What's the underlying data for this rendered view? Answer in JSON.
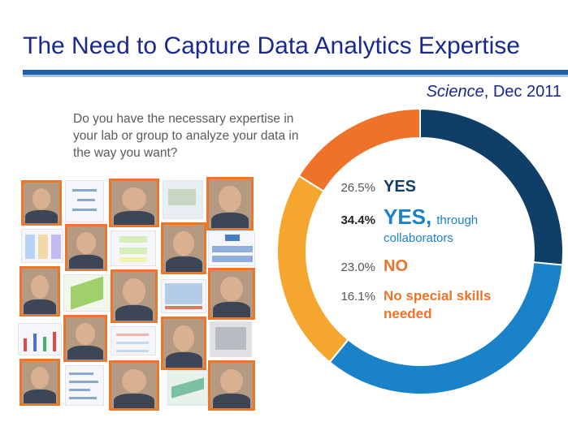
{
  "slide": {
    "title": "The Need to Capture Data Analytics Expertise",
    "source_pub": "Science",
    "source_date": ", Dec 2011",
    "question": "Do you have the necessary expertise in your lab or group to analyze your data in the way you want?"
  },
  "chart_data": {
    "type": "pie",
    "variant": "donut",
    "categories": [
      "YES",
      "YES, through collaborators",
      "NO",
      "No special skills needed"
    ],
    "values": [
      26.5,
      34.4,
      23.0,
      16.1
    ],
    "value_labels": [
      "26.5%",
      "34.4%",
      "23.0%",
      "16.1%"
    ],
    "legend_lines": [
      [
        "YES"
      ],
      [
        "YES,",
        "through",
        "collaborators"
      ],
      [
        "NO"
      ],
      [
        "No special skills",
        "needed"
      ]
    ],
    "colors": [
      "#0f3f66",
      "#1a82c9",
      "#f4a62e",
      "#ee7328"
    ],
    "label_colors": [
      "#0f3f66",
      "#1a82c9",
      "#ee7328",
      "#ee7328"
    ],
    "start_angle_deg": 0,
    "direction": "clockwise"
  },
  "colors": {
    "title": "#1a2a8c",
    "rule": "#1f5fa8",
    "photo_border": "#e9782a"
  }
}
